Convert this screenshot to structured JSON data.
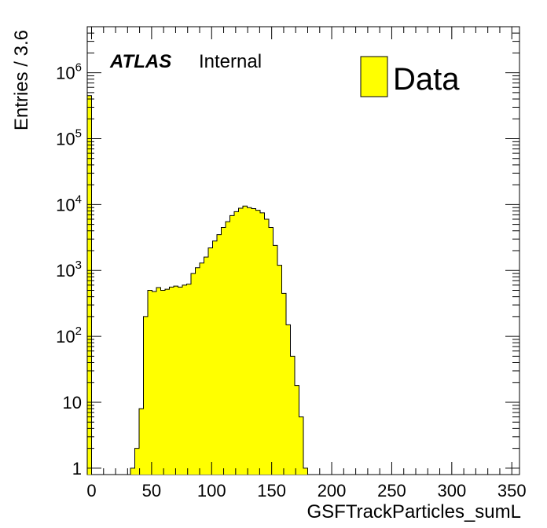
{
  "chart_data": {
    "type": "bar",
    "subtype": "histogram",
    "xlabel": "GSFTrackParticles_sumL",
    "ylabel": "Entries / 3.6",
    "xlim": [
      -3.6,
      356.4
    ],
    "ylim": [
      0.8,
      5000000
    ],
    "yscale": "log",
    "x_ticks": [
      "0",
      "50",
      "100",
      "150",
      "200",
      "250",
      "300",
      "350"
    ],
    "x_tick_values": [
      0,
      50,
      100,
      150,
      200,
      250,
      300,
      350
    ],
    "y_ticks": [
      {
        "value": 1,
        "base": "1",
        "exp": ""
      },
      {
        "value": 10,
        "base": "10",
        "exp": ""
      },
      {
        "value": 100,
        "base": "10",
        "exp": "2"
      },
      {
        "value": 1000,
        "base": "10",
        "exp": "3"
      },
      {
        "value": 10000,
        "base": "10",
        "exp": "4"
      },
      {
        "value": 100000,
        "base": "10",
        "exp": "5"
      },
      {
        "value": 1000000,
        "base": "10",
        "exp": "6"
      }
    ],
    "bin_width": 3.6,
    "bin_start": -3.6,
    "values": [
      450000,
      0,
      0,
      0,
      0,
      0,
      0,
      0,
      0,
      0,
      1,
      2,
      8,
      200,
      500,
      480,
      550,
      500,
      520,
      560,
      580,
      560,
      600,
      620,
      900,
      1100,
      1300,
      1600,
      2200,
      2800,
      3500,
      4500,
      5500,
      6800,
      7800,
      8800,
      9500,
      9000,
      8700,
      8200,
      7500,
      6000,
      4500,
      2400,
      1200,
      450,
      150,
      50,
      18,
      6,
      1
    ],
    "series": [
      {
        "name": "Data",
        "color": "#ffff00",
        "edge": "#000000"
      }
    ],
    "legend": {
      "position": "top-right",
      "label": "Data"
    },
    "annotation": {
      "experiment": "ATLAS",
      "status": "Internal"
    },
    "grid": false
  }
}
